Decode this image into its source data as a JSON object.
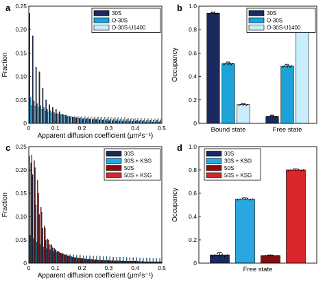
{
  "colors": {
    "s30": "#1b2a5e",
    "o30": "#1ea3d8",
    "o30u": "#c8eefb",
    "ksg": "#2aa7e0",
    "s50": "#8a0e10",
    "s50ksg": "#d8262c"
  },
  "chart_data": [
    {
      "panel_label": "a",
      "type": "bar",
      "ylabel": "Fraction",
      "xlabel": "Apparent diffusion coefficient (μm²s⁻¹)",
      "xlim": [
        0,
        0.5
      ],
      "ylim": [
        0,
        0.25
      ],
      "xticks": [
        "0",
        "0.1",
        "0.2",
        "0.3",
        "0.4",
        "0.5"
      ],
      "yticks": [
        "0",
        "0.05",
        "0.10",
        "0.15",
        "0.20",
        "0.25"
      ],
      "legend": "top-right",
      "bin_width": 0.0125,
      "series": [
        {
          "name": "30S",
          "color_key": "s30",
          "values": [
            0.235,
            0.187,
            0.12,
            0.11,
            0.075,
            0.05,
            0.04,
            0.034,
            0.03,
            0.025,
            0.02,
            0.018,
            0.015,
            0.013,
            0.012,
            0.011,
            0.01,
            0.009,
            0.009,
            0.008,
            0.008,
            0.007,
            0.007,
            0.006,
            0.006,
            0.006,
            0.005,
            0.005,
            0.005,
            0.005,
            0.004,
            0.004,
            0.004,
            0.004,
            0.004,
            0.003,
            0.003,
            0.003,
            0.003,
            0.003
          ]
        },
        {
          "name": "O-30S",
          "color_key": "o30",
          "values": [
            0.055,
            0.048,
            0.042,
            0.038,
            0.034,
            0.03,
            0.027,
            0.024,
            0.021,
            0.019,
            0.017,
            0.015,
            0.014,
            0.013,
            0.012,
            0.012,
            0.011,
            0.011,
            0.01,
            0.01,
            0.01,
            0.01,
            0.009,
            0.009,
            0.009,
            0.009,
            0.008,
            0.008,
            0.008,
            0.008,
            0.008,
            0.008,
            0.007,
            0.007,
            0.007,
            0.007,
            0.007,
            0.007,
            0.007,
            0.006
          ]
        },
        {
          "name": "O-30S-U1400",
          "color_key": "o30u",
          "values": [
            0.038,
            0.036,
            0.034,
            0.03,
            0.026,
            0.024,
            0.022,
            0.02,
            0.019,
            0.018,
            0.017,
            0.016,
            0.015,
            0.015,
            0.014,
            0.014,
            0.014,
            0.014,
            0.014,
            0.013,
            0.013,
            0.013,
            0.013,
            0.013,
            0.012,
            0.012,
            0.012,
            0.012,
            0.012,
            0.011,
            0.011,
            0.011,
            0.011,
            0.011,
            0.011,
            0.01,
            0.01,
            0.01,
            0.01,
            0.01
          ]
        }
      ]
    },
    {
      "panel_label": "b",
      "type": "bar",
      "ylabel": "Occupancy",
      "categories": [
        "Bound state",
        "Free state"
      ],
      "ylim": [
        0,
        1.0
      ],
      "yticks": [
        "0",
        "0.2",
        "0.4",
        "0.6",
        "0.8",
        "1.0"
      ],
      "legend": "top-right",
      "series": [
        {
          "name": "30S",
          "color_key": "s30",
          "values": [
            0.94,
            0.06
          ],
          "errors": [
            0.01,
            0.01
          ]
        },
        {
          "name": "O-30S",
          "color_key": "o30",
          "values": [
            0.51,
            0.49
          ],
          "errors": [
            0.015,
            0.015
          ]
        },
        {
          "name": "O-30S-U1400",
          "color_key": "o30u",
          "values": [
            0.16,
            0.84
          ],
          "errors": [
            0.01,
            0.01
          ]
        }
      ]
    },
    {
      "panel_label": "c",
      "type": "bar",
      "ylabel": "Fraction",
      "xlabel": "Apparent diffusion coefficient (μm²s⁻¹)",
      "xlim": [
        0,
        0.5
      ],
      "ylim": [
        0,
        0.25
      ],
      "xticks": [
        "0",
        "0.1",
        "0.2",
        "0.3",
        "0.4",
        "0.5"
      ],
      "yticks": [
        "0",
        "0.05",
        "0.10",
        "0.15",
        "0.20",
        "0.25"
      ],
      "legend": "top-right",
      "bin_width": 0.0125,
      "series": [
        {
          "name": "30S",
          "color_key": "s30",
          "values": [
            0.23,
            0.19,
            0.125,
            0.105,
            0.075,
            0.05,
            0.04,
            0.033,
            0.028,
            0.024,
            0.02,
            0.017,
            0.015,
            0.013,
            0.012,
            0.011,
            0.01,
            0.009,
            0.009,
            0.008,
            0.008,
            0.007,
            0.007,
            0.006,
            0.006,
            0.006,
            0.005,
            0.005,
            0.005,
            0.005,
            0.004,
            0.004,
            0.004,
            0.004,
            0.004,
            0.003,
            0.003,
            0.003,
            0.003,
            0.003
          ]
        },
        {
          "name": "30S + KSG",
          "color_key": "ksg",
          "values": [
            0.06,
            0.052,
            0.045,
            0.04,
            0.035,
            0.031,
            0.028,
            0.025,
            0.023,
            0.021,
            0.02,
            0.019,
            0.018,
            0.018,
            0.017,
            0.017,
            0.016,
            0.016,
            0.016,
            0.015,
            0.015,
            0.015,
            0.014,
            0.014,
            0.014,
            0.013,
            0.013,
            0.013,
            0.013,
            0.012,
            0.012,
            0.012,
            0.012,
            0.011,
            0.011,
            0.011,
            0.011,
            0.01,
            0.01,
            0.01
          ]
        },
        {
          "name": "50S",
          "color_key": "s50",
          "values": [
            0.215,
            0.22,
            0.178,
            0.12,
            0.08,
            0.052,
            0.04,
            0.032,
            0.026,
            0.022,
            0.018,
            0.016,
            0.014,
            0.012,
            0.011,
            0.01,
            0.009,
            0.008,
            0.008,
            0.007,
            0.007,
            0.006,
            0.006,
            0.006,
            0.005,
            0.005,
            0.005,
            0.005,
            0.004,
            0.004,
            0.004,
            0.004,
            0.004,
            0.003,
            0.003,
            0.003,
            0.003,
            0.003,
            0.003,
            0.003
          ]
        },
        {
          "name": "50S + KSG",
          "color_key": "s50ksg",
          "values": [
            0.232,
            0.205,
            0.15,
            0.11,
            0.075,
            0.05,
            0.038,
            0.03,
            0.025,
            0.021,
            0.018,
            0.016,
            0.014,
            0.012,
            0.011,
            0.01,
            0.009,
            0.008,
            0.008,
            0.007,
            0.007,
            0.006,
            0.006,
            0.006,
            0.005,
            0.005,
            0.005,
            0.004,
            0.004,
            0.004,
            0.004,
            0.004,
            0.003,
            0.003,
            0.003,
            0.003,
            0.003,
            0.003,
            0.003,
            0.003
          ]
        }
      ]
    },
    {
      "panel_label": "d",
      "type": "bar",
      "ylabel": "Occupancy",
      "categories": [
        "Free state"
      ],
      "ylim": [
        0,
        1.0
      ],
      "yticks": [
        "0",
        "0.2",
        "0.4",
        "0.6",
        "0.8",
        "1.0"
      ],
      "legend": "top-left",
      "series": [
        {
          "name": "30S",
          "color_key": "s30",
          "values": [
            0.07
          ],
          "errors": [
            0.02
          ]
        },
        {
          "name": "30S + KSG",
          "color_key": "ksg",
          "values": [
            0.55
          ],
          "errors": [
            0.01
          ]
        },
        {
          "name": "50S",
          "color_key": "s50",
          "values": [
            0.065
          ],
          "errors": [
            0.005
          ]
        },
        {
          "name": "50S + KSG",
          "color_key": "s50ksg",
          "values": [
            0.8
          ],
          "errors": [
            0.01
          ]
        }
      ]
    }
  ]
}
